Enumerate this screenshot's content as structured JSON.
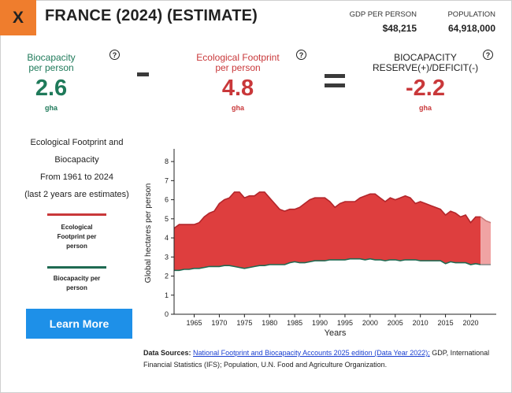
{
  "header": {
    "close_label": "X",
    "title": "FRANCE (2024) (ESTIMATE)",
    "gdp_label": "GDP PER PERSON",
    "gdp_value": "$48,215",
    "population_label": "POPULATION",
    "population_value": "64,918,000"
  },
  "metrics": {
    "biocapacity": {
      "label_line1": "Biocapacity",
      "label_line2": "per person",
      "value": "2.6",
      "unit": "gha",
      "help": "?"
    },
    "footprint": {
      "label_line1": "Ecological Footprint",
      "label_line2": "per person",
      "value": "4.8",
      "unit": "gha",
      "help": "?"
    },
    "reserve": {
      "label_line1": "BIOCAPACITY",
      "label_line2": "RESERVE(+)/DEFICIT(-)",
      "value": "-2.2",
      "unit": "gha",
      "help": "?"
    }
  },
  "description": {
    "line1": "Ecological Footprint and",
    "line2": "Biocapacity",
    "line3": "From 1961 to 2024",
    "line4": "(last 2 years are estimates)"
  },
  "legend": {
    "footprint_line1": "Ecological",
    "footprint_line2": "Footprint per",
    "footprint_line3": "person",
    "biocapacity_line1": "Biocapacity per",
    "biocapacity_line2": "person"
  },
  "learn_more_label": "Learn More",
  "sources": {
    "label": "Data Sources:",
    "link_text": "National Footprint and Biocapacity Accounts 2025 edition (Data Year 2022);",
    "rest": " GDP, International Financial Statistics (IFS); Population, U.N. Food and Agriculture Organization."
  },
  "colors": {
    "accent_orange": "#ef7d2d",
    "footprint_red": "#c9383a",
    "deficit_fill": "#de3e3e",
    "estimate_fill": "#f0a3a3",
    "biocapacity_green": "#1f6a52",
    "button_blue": "#1e90e8"
  },
  "chart_data": {
    "type": "area",
    "ylabel": "Global hectares per person",
    "xlabel": "Years",
    "xlim": [
      1961,
      2024
    ],
    "ylim": [
      0,
      8.5
    ],
    "yticks": [
      0,
      1,
      2,
      3,
      4,
      5,
      6,
      7,
      8
    ],
    "xticks": [
      1965,
      1970,
      1975,
      1980,
      1985,
      1990,
      1995,
      2000,
      2005,
      2010,
      2015,
      2020
    ],
    "estimate_years": [
      2023,
      2024
    ],
    "x": [
      1961,
      1962,
      1963,
      1964,
      1965,
      1966,
      1967,
      1968,
      1969,
      1970,
      1971,
      1972,
      1973,
      1974,
      1975,
      1976,
      1977,
      1978,
      1979,
      1980,
      1981,
      1982,
      1983,
      1984,
      1985,
      1986,
      1987,
      1988,
      1989,
      1990,
      1991,
      1992,
      1993,
      1994,
      1995,
      1996,
      1997,
      1998,
      1999,
      2000,
      2001,
      2002,
      2003,
      2004,
      2005,
      2006,
      2007,
      2008,
      2009,
      2010,
      2011,
      2012,
      2013,
      2014,
      2015,
      2016,
      2017,
      2018,
      2019,
      2020,
      2021,
      2022,
      2023,
      2024
    ],
    "series": [
      {
        "name": "Ecological Footprint per person",
        "values": [
          4.5,
          4.7,
          4.7,
          4.7,
          4.7,
          4.8,
          5.1,
          5.3,
          5.4,
          5.8,
          6.0,
          6.1,
          6.4,
          6.4,
          6.1,
          6.2,
          6.2,
          6.4,
          6.4,
          6.1,
          5.8,
          5.5,
          5.4,
          5.5,
          5.5,
          5.6,
          5.8,
          6.0,
          6.1,
          6.1,
          6.1,
          5.9,
          5.6,
          5.8,
          5.9,
          5.9,
          5.9,
          6.1,
          6.2,
          6.3,
          6.3,
          6.1,
          5.9,
          6.1,
          6.0,
          6.1,
          6.2,
          6.1,
          5.8,
          5.9,
          5.8,
          5.7,
          5.6,
          5.5,
          5.2,
          5.4,
          5.3,
          5.1,
          5.2,
          4.8,
          5.1,
          5.1,
          4.9,
          4.8
        ]
      },
      {
        "name": "Biocapacity per person",
        "values": [
          2.3,
          2.3,
          2.35,
          2.35,
          2.4,
          2.4,
          2.45,
          2.5,
          2.5,
          2.5,
          2.55,
          2.55,
          2.5,
          2.45,
          2.4,
          2.45,
          2.5,
          2.55,
          2.55,
          2.6,
          2.6,
          2.6,
          2.6,
          2.7,
          2.75,
          2.7,
          2.7,
          2.75,
          2.8,
          2.8,
          2.8,
          2.85,
          2.85,
          2.85,
          2.85,
          2.9,
          2.9,
          2.9,
          2.85,
          2.9,
          2.85,
          2.85,
          2.8,
          2.85,
          2.85,
          2.8,
          2.85,
          2.85,
          2.85,
          2.8,
          2.8,
          2.8,
          2.8,
          2.8,
          2.65,
          2.75,
          2.7,
          2.7,
          2.7,
          2.6,
          2.65,
          2.6,
          2.6,
          2.6
        ]
      }
    ]
  }
}
